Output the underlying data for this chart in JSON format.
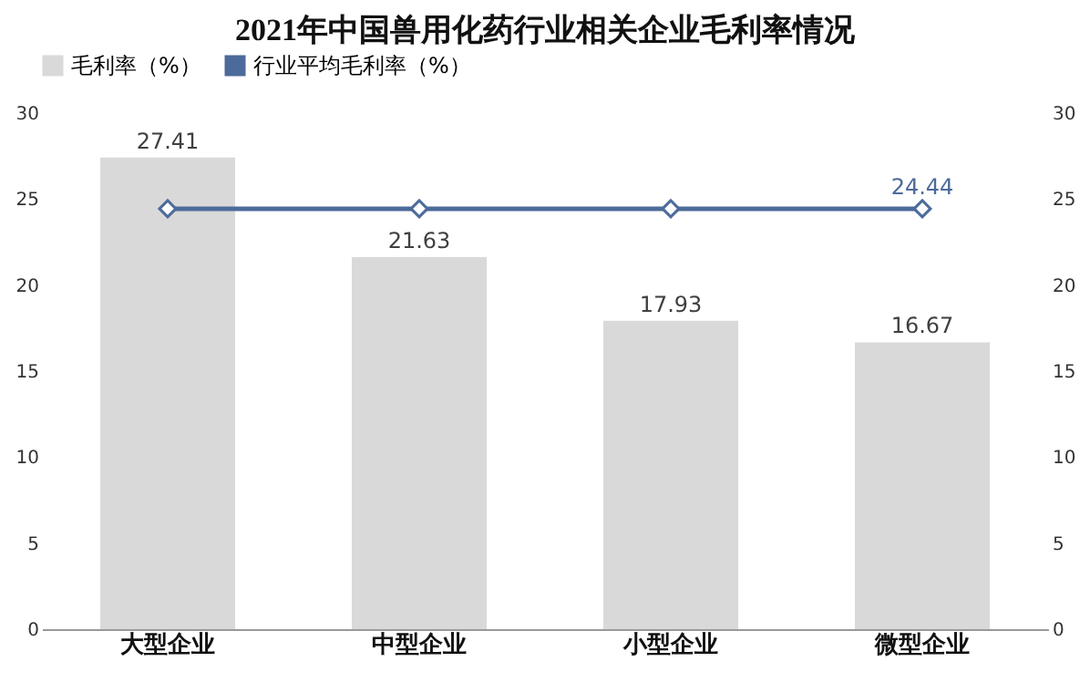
{
  "chart_data": {
    "type": "bar",
    "title": "2021年中国兽用化药行业相关企业毛利率情况",
    "categories": [
      "大型企业",
      "中型企业",
      "小型企业",
      "微型企业"
    ],
    "series": [
      {
        "name": "毛利率（%）",
        "color": "#d9d9d9",
        "values": [
          27.41,
          21.63,
          17.93,
          16.67
        ]
      },
      {
        "name": "行业平均毛利率（%）",
        "type": "line",
        "axis": "y2",
        "color": "#4d6b9a",
        "marker": "diamond",
        "values": [
          24.44,
          24.44,
          24.44,
          24.44
        ],
        "value_labels": [
          null,
          null,
          null,
          "24.44"
        ]
      }
    ],
    "data_labels": true,
    "ylim": [
      0,
      30
    ],
    "yticks": [
      0,
      5,
      10,
      15,
      20,
      25,
      30
    ],
    "y2lim": [
      0,
      30
    ],
    "y2ticks": [
      0,
      5,
      10,
      15,
      20,
      25,
      30
    ],
    "legend": "top",
    "grid": false
  }
}
